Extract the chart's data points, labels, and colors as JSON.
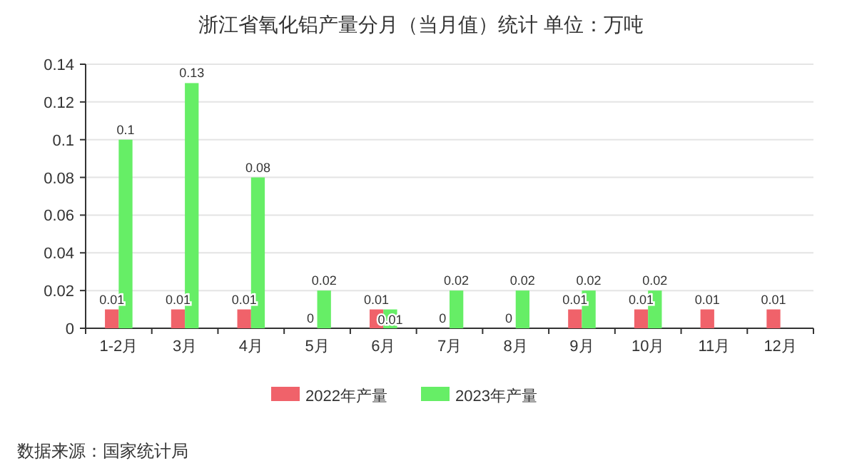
{
  "chart_data": {
    "type": "bar",
    "title": "浙江省氧化铝产量分月（当月值）统计 单位：万吨",
    "categories": [
      "1-2月",
      "3月",
      "4月",
      "5月",
      "6月",
      "7月",
      "8月",
      "9月",
      "10月",
      "11月",
      "12月"
    ],
    "series": [
      {
        "name": "2022年产量",
        "color": "#f0626a",
        "values": [
          0.01,
          0.01,
          0.01,
          0,
          0.01,
          0,
          0,
          0.01,
          0.01,
          0.01,
          0.01
        ]
      },
      {
        "name": "2023年产量",
        "color": "#66ee66",
        "values": [
          0.1,
          0.13,
          0.08,
          0.02,
          0.01,
          0.02,
          0.02,
          0.02,
          0.02,
          null,
          null
        ]
      }
    ],
    "ylim": [
      0,
      0.14
    ],
    "yticks": [
      0,
      0.02,
      0.04,
      0.06,
      0.08,
      0.1,
      0.12,
      0.14
    ],
    "grid": "y",
    "legend": "bottom",
    "data_labels": true,
    "annotations": [
      "数据来源：国家统计局"
    ]
  }
}
